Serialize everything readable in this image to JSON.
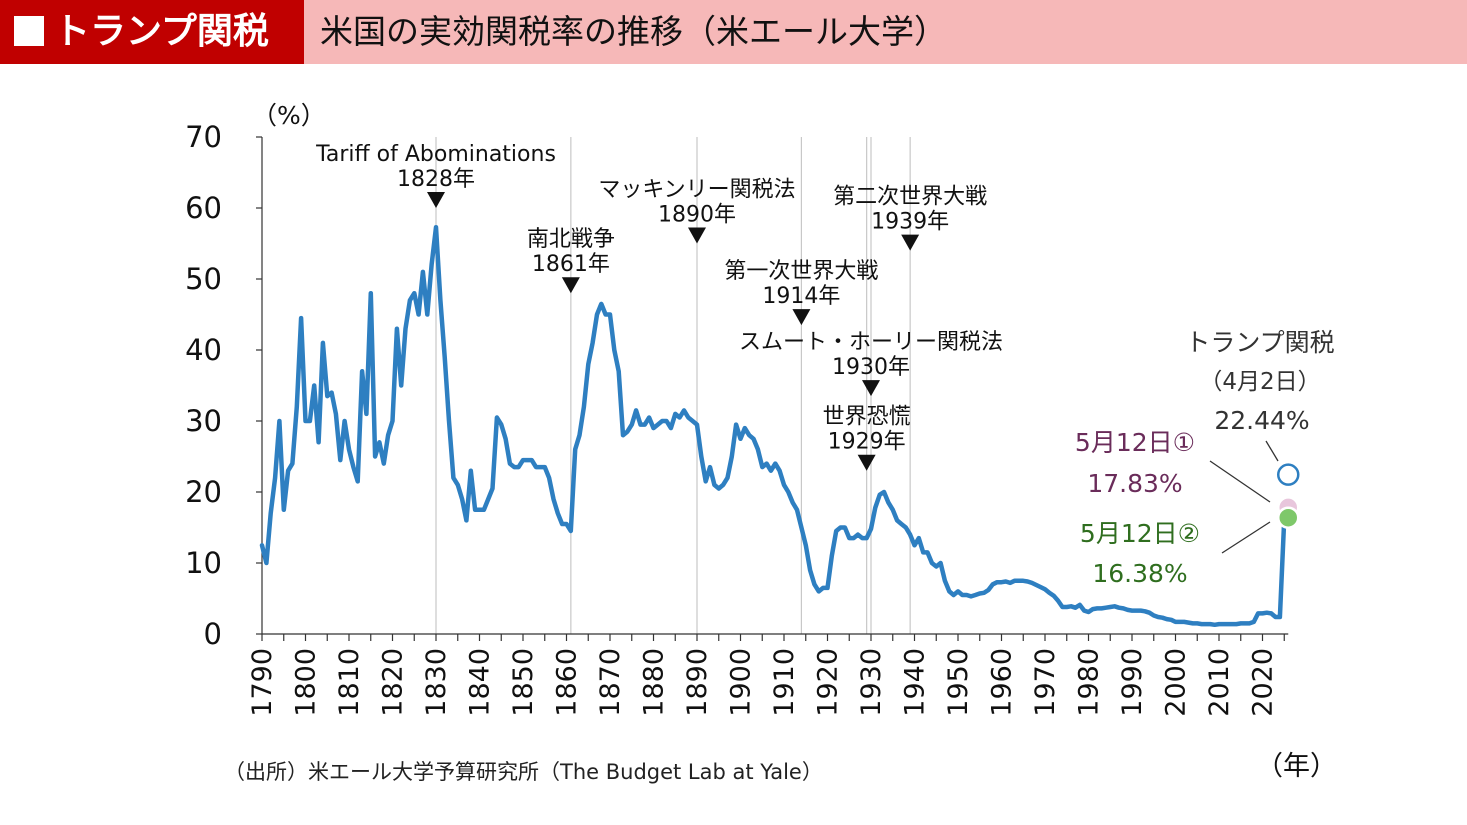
{
  "header": {
    "tag": "トランプ関税",
    "title": "米国の実効関税率の推移（米エール大学）"
  },
  "source": "（出所）米エール大学予算研究所（The Budget Lab at Yale）",
  "colors": {
    "header_tag_bg": "#c00000",
    "header_bg": "#f6b8b8",
    "line": "#2e7fc1",
    "marker_apr2": "#2e7fc1",
    "marker_may12_1": "#e8c6dc",
    "marker_may12_2": "#7ec86a",
    "label_may12_1": "#6a2c5a",
    "label_may12_2": "#2f6e1f"
  },
  "chart_data": {
    "type": "line",
    "title": "",
    "ylabel": "（%）",
    "xlabel": "（年）",
    "ylim": [
      0,
      70
    ],
    "yticks": [
      "0",
      "10",
      "20",
      "30",
      "40",
      "50",
      "60",
      "70"
    ],
    "xlim": [
      1790,
      2025
    ],
    "xticks": [
      "1790",
      "1800",
      "1810",
      "1820",
      "1830",
      "1840",
      "1850",
      "1860",
      "1870",
      "1880",
      "1890",
      "1900",
      "1910",
      "1920",
      "1930",
      "1940",
      "1950",
      "1960",
      "1970",
      "1980",
      "1990",
      "2000",
      "2010",
      "2020"
    ],
    "grid": false,
    "series": [
      {
        "color": "#2e7fc1",
        "points": [
          [
            1790,
            12.5
          ],
          [
            1791,
            10
          ],
          [
            1792,
            17
          ],
          [
            1793,
            22
          ],
          [
            1794,
            30
          ],
          [
            1795,
            17.5
          ],
          [
            1796,
            23
          ],
          [
            1797,
            24
          ],
          [
            1798,
            32
          ],
          [
            1799,
            44.5
          ],
          [
            1800,
            30
          ],
          [
            1801,
            30
          ],
          [
            1802,
            35
          ],
          [
            1803,
            27
          ],
          [
            1804,
            41
          ],
          [
            1805,
            33.5
          ],
          [
            1806,
            34
          ],
          [
            1807,
            31
          ],
          [
            1808,
            24.5
          ],
          [
            1809,
            30
          ],
          [
            1810,
            26
          ],
          [
            1811,
            23.5
          ],
          [
            1812,
            21.5
          ],
          [
            1813,
            37
          ],
          [
            1814,
            31
          ],
          [
            1815,
            48
          ],
          [
            1816,
            25
          ],
          [
            1817,
            27
          ],
          [
            1818,
            24
          ],
          [
            1819,
            28
          ],
          [
            1820,
            30
          ],
          [
            1821,
            43
          ],
          [
            1822,
            35
          ],
          [
            1823,
            43
          ],
          [
            1824,
            47
          ],
          [
            1825,
            48
          ],
          [
            1826,
            45
          ],
          [
            1827,
            51
          ],
          [
            1828,
            45
          ],
          [
            1829,
            52
          ],
          [
            1830,
            57.3
          ],
          [
            1831,
            47
          ],
          [
            1832,
            39
          ],
          [
            1833,
            30
          ],
          [
            1834,
            22
          ],
          [
            1835,
            21
          ],
          [
            1836,
            19
          ],
          [
            1837,
            16
          ],
          [
            1838,
            23
          ],
          [
            1839,
            17.5
          ],
          [
            1840,
            17.5
          ],
          [
            1841,
            17.5
          ],
          [
            1842,
            19
          ],
          [
            1843,
            20.5
          ],
          [
            1844,
            30.5
          ],
          [
            1845,
            29.5
          ],
          [
            1846,
            27.5
          ],
          [
            1847,
            24
          ],
          [
            1848,
            23.5
          ],
          [
            1849,
            23.5
          ],
          [
            1850,
            24.5
          ],
          [
            1851,
            24.5
          ],
          [
            1852,
            24.5
          ],
          [
            1853,
            23.5
          ],
          [
            1854,
            23.5
          ],
          [
            1855,
            23.5
          ],
          [
            1856,
            22
          ],
          [
            1857,
            19
          ],
          [
            1858,
            17
          ],
          [
            1859,
            15.5
          ],
          [
            1860,
            15.5
          ],
          [
            1861,
            14.5
          ],
          [
            1862,
            26
          ],
          [
            1863,
            28
          ],
          [
            1864,
            32
          ],
          [
            1865,
            38
          ],
          [
            1866,
            41
          ],
          [
            1867,
            45
          ],
          [
            1868,
            46.5
          ],
          [
            1869,
            45
          ],
          [
            1870,
            45
          ],
          [
            1871,
            40
          ],
          [
            1872,
            37
          ],
          [
            1873,
            28
          ],
          [
            1874,
            28.5
          ],
          [
            1875,
            29.5
          ],
          [
            1876,
            31.5
          ],
          [
            1877,
            29.5
          ],
          [
            1878,
            29.5
          ],
          [
            1879,
            30.5
          ],
          [
            1880,
            29
          ],
          [
            1881,
            29.5
          ],
          [
            1882,
            30
          ],
          [
            1883,
            30
          ],
          [
            1884,
            29
          ],
          [
            1885,
            31
          ],
          [
            1886,
            30.5
          ],
          [
            1887,
            31.5
          ],
          [
            1888,
            30.5
          ],
          [
            1889,
            30
          ],
          [
            1890,
            29.5
          ],
          [
            1891,
            25
          ],
          [
            1892,
            21.5
          ],
          [
            1893,
            23.5
          ],
          [
            1894,
            21
          ],
          [
            1895,
            20.5
          ],
          [
            1896,
            21
          ],
          [
            1897,
            22
          ],
          [
            1898,
            25
          ],
          [
            1899,
            29.5
          ],
          [
            1900,
            27.5
          ],
          [
            1901,
            29
          ],
          [
            1902,
            28
          ],
          [
            1903,
            27.5
          ],
          [
            1904,
            26
          ],
          [
            1905,
            23.5
          ],
          [
            1906,
            24
          ],
          [
            1907,
            23
          ],
          [
            1908,
            24
          ],
          [
            1909,
            23
          ],
          [
            1910,
            21
          ],
          [
            1911,
            20
          ],
          [
            1912,
            18.5
          ],
          [
            1913,
            17.5
          ],
          [
            1914,
            15
          ],
          [
            1915,
            12.5
          ],
          [
            1916,
            9
          ],
          [
            1917,
            7
          ],
          [
            1918,
            6
          ],
          [
            1919,
            6.5
          ],
          [
            1920,
            6.5
          ],
          [
            1921,
            11
          ],
          [
            1922,
            14.5
          ],
          [
            1923,
            15
          ],
          [
            1924,
            15
          ],
          [
            1925,
            13.5
          ],
          [
            1926,
            13.5
          ],
          [
            1927,
            14
          ],
          [
            1928,
            13.5
          ],
          [
            1929,
            13.5
          ],
          [
            1930,
            14.8
          ],
          [
            1931,
            17.8
          ],
          [
            1932,
            19.6
          ],
          [
            1933,
            20
          ],
          [
            1934,
            18.5
          ],
          [
            1935,
            17.5
          ],
          [
            1936,
            16
          ],
          [
            1937,
            15.5
          ],
          [
            1938,
            15
          ],
          [
            1939,
            14
          ],
          [
            1940,
            12.5
          ],
          [
            1941,
            13.5
          ],
          [
            1942,
            11.5
          ],
          [
            1943,
            11.5
          ],
          [
            1944,
            10
          ],
          [
            1945,
            9.5
          ],
          [
            1946,
            10
          ],
          [
            1947,
            7.5
          ],
          [
            1948,
            6
          ],
          [
            1949,
            5.5
          ],
          [
            1950,
            6
          ],
          [
            1951,
            5.5
          ],
          [
            1952,
            5.5
          ],
          [
            1953,
            5.3
          ],
          [
            1954,
            5.5
          ],
          [
            1955,
            5.7
          ],
          [
            1956,
            5.8
          ],
          [
            1957,
            6.2
          ],
          [
            1958,
            7
          ],
          [
            1959,
            7.3
          ],
          [
            1960,
            7.3
          ],
          [
            1961,
            7.4
          ],
          [
            1962,
            7.2
          ],
          [
            1963,
            7.5
          ],
          [
            1964,
            7.5
          ],
          [
            1965,
            7.5
          ],
          [
            1966,
            7.4
          ],
          [
            1967,
            7.2
          ],
          [
            1968,
            6.9
          ],
          [
            1969,
            6.6
          ],
          [
            1970,
            6.3
          ],
          [
            1971,
            5.8
          ],
          [
            1972,
            5.4
          ],
          [
            1973,
            4.7
          ],
          [
            1974,
            3.8
          ],
          [
            1975,
            3.8
          ],
          [
            1976,
            3.9
          ],
          [
            1977,
            3.7
          ],
          [
            1978,
            4.1
          ],
          [
            1979,
            3.3
          ],
          [
            1980,
            3.1
          ],
          [
            1981,
            3.5
          ],
          [
            1982,
            3.6
          ],
          [
            1983,
            3.6
          ],
          [
            1984,
            3.7
          ],
          [
            1985,
            3.8
          ],
          [
            1986,
            3.9
          ],
          [
            1987,
            3.7
          ],
          [
            1988,
            3.6
          ],
          [
            1989,
            3.4
          ],
          [
            1990,
            3.3
          ],
          [
            1991,
            3.3
          ],
          [
            1992,
            3.3
          ],
          [
            1993,
            3.2
          ],
          [
            1994,
            3
          ],
          [
            1995,
            2.6
          ],
          [
            1996,
            2.4
          ],
          [
            1997,
            2.3
          ],
          [
            1998,
            2.1
          ],
          [
            1999,
            2
          ],
          [
            2000,
            1.7
          ],
          [
            2001,
            1.7
          ],
          [
            2002,
            1.7
          ],
          [
            2003,
            1.6
          ],
          [
            2004,
            1.5
          ],
          [
            2005,
            1.5
          ],
          [
            2006,
            1.4
          ],
          [
            2007,
            1.4
          ],
          [
            2008,
            1.4
          ],
          [
            2009,
            1.3
          ],
          [
            2010,
            1.4
          ],
          [
            2011,
            1.4
          ],
          [
            2012,
            1.4
          ],
          [
            2013,
            1.4
          ],
          [
            2014,
            1.4
          ],
          [
            2015,
            1.5
          ],
          [
            2016,
            1.5
          ],
          [
            2017,
            1.5
          ],
          [
            2018,
            1.7
          ],
          [
            2019,
            2.9
          ],
          [
            2020,
            2.9
          ],
          [
            2021,
            3
          ],
          [
            2022,
            2.9
          ],
          [
            2023,
            2.4
          ],
          [
            2024,
            2.4
          ],
          [
            2025,
            16.38
          ]
        ]
      }
    ],
    "highlights": [
      {
        "year": 2025,
        "value": 22.44,
        "color": "#2e7fc1",
        "fill": "#ffffff",
        "label1": "トランプ関税",
        "label2": "（4月2日）",
        "label3": "22.44%"
      },
      {
        "year": 2025,
        "value": 17.83,
        "color": "#6a2c5a",
        "fill": "#e8c6dc",
        "label1": "5月12日①",
        "label2": "17.83%"
      },
      {
        "year": 2025,
        "value": 16.38,
        "color": "#2f6e1f",
        "fill": "#7ec86a",
        "label1": "5月12日②",
        "label2": "16.38%"
      }
    ],
    "annotations": [
      {
        "year": 1830,
        "arrow_value": 60,
        "lines": [
          "Tariff of Abominations",
          "1828年"
        ]
      },
      {
        "year": 1861,
        "arrow_value": 48,
        "lines": [
          "南北戦争",
          "1861年"
        ]
      },
      {
        "year": 1890,
        "arrow_value": 55,
        "lines": [
          "マッキンリー関税法",
          "1890年"
        ]
      },
      {
        "year": 1939,
        "arrow_value": 54,
        "lines": [
          "第二次世界大戦",
          "1939年"
        ]
      },
      {
        "year": 1914,
        "arrow_value": 43.5,
        "lines": [
          "第一次世界大戦",
          "1914年"
        ]
      },
      {
        "year": 1930,
        "arrow_value": 33.5,
        "lines": [
          "スムート・ホーリー関税法",
          "1930年"
        ]
      },
      {
        "year": 1929,
        "arrow_value": 23,
        "lines": [
          "世界恐慌",
          "1929年"
        ]
      }
    ],
    "vlines": [
      1830,
      1861,
      1890,
      1914,
      1929,
      1930,
      1939
    ]
  }
}
